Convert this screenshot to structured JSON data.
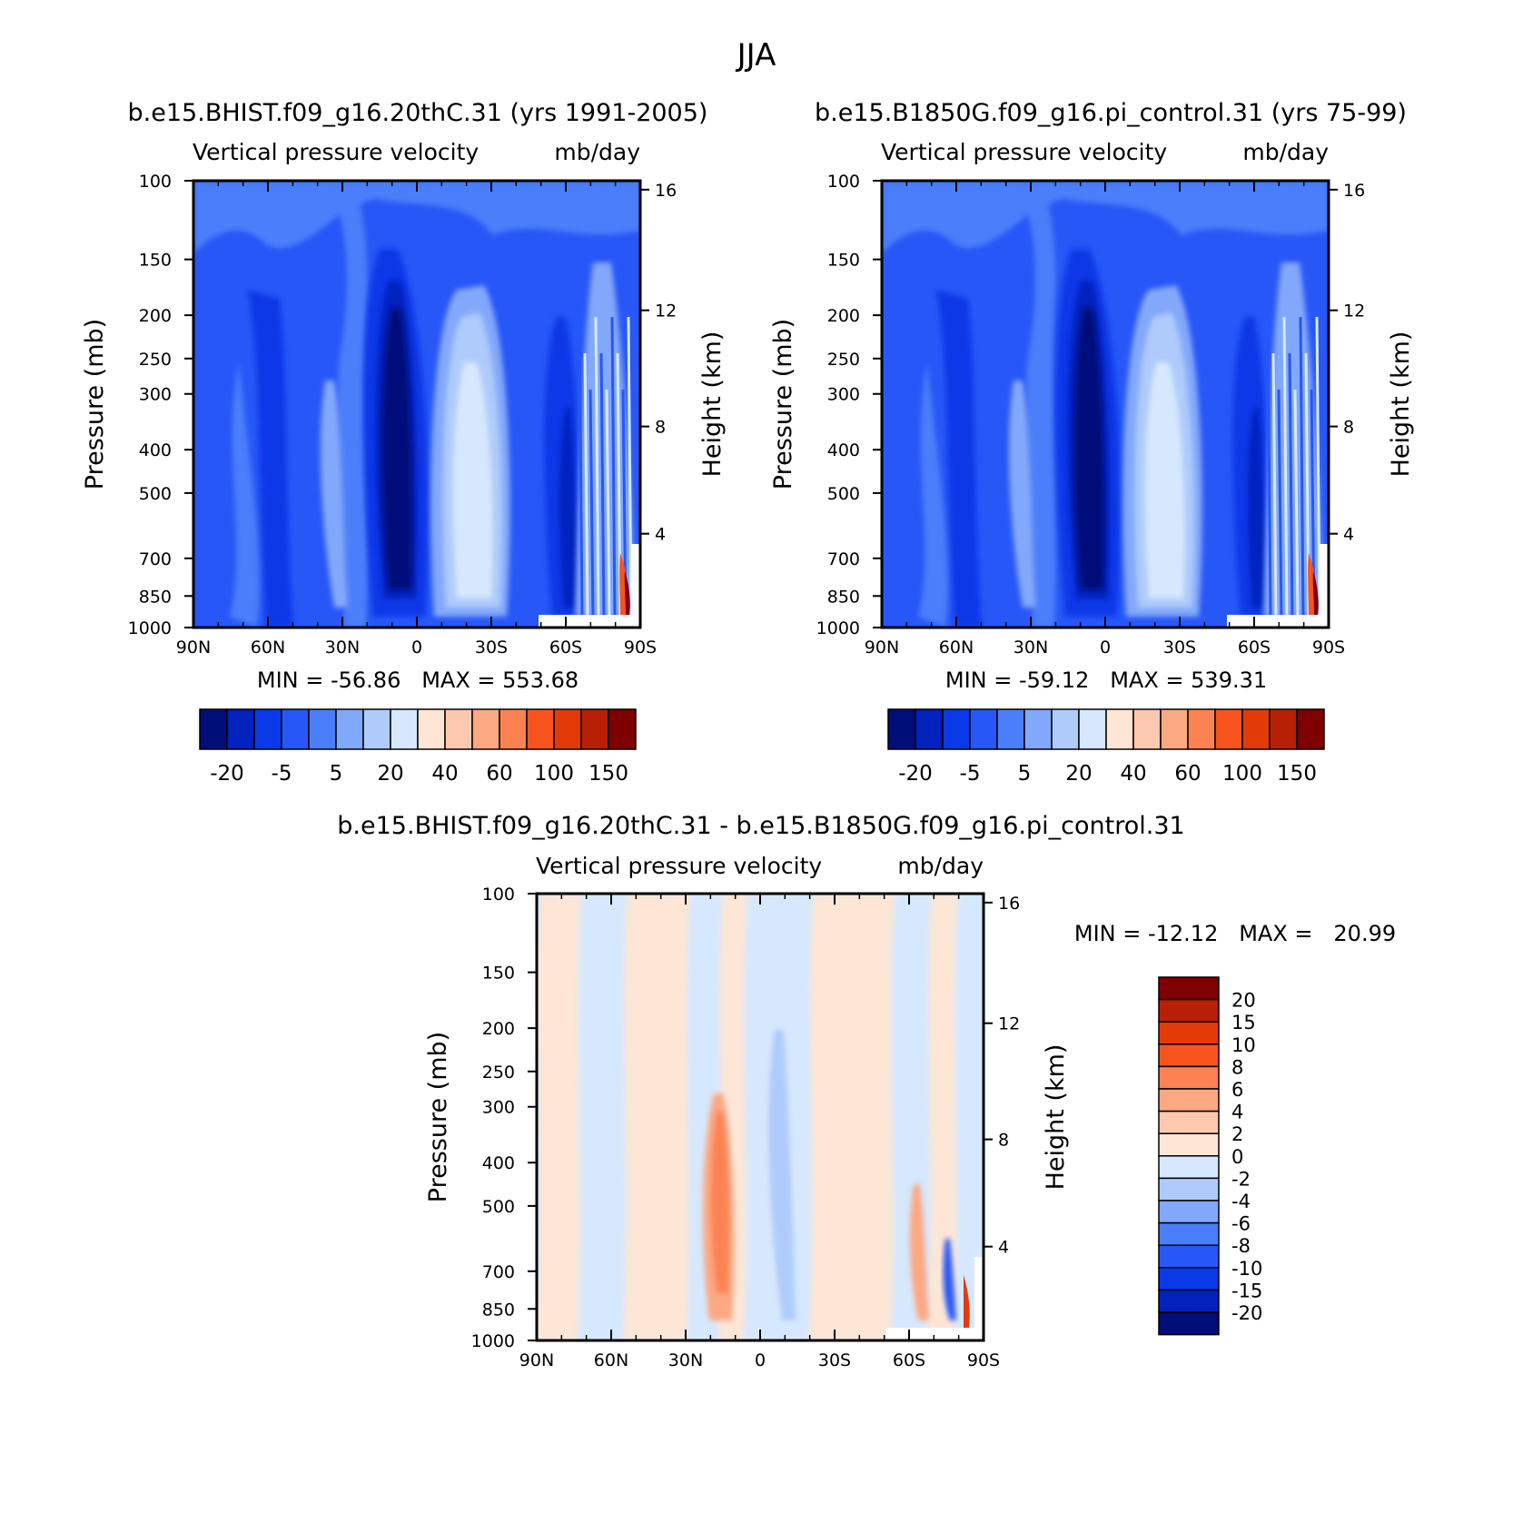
{
  "figure": {
    "title": "JJA",
    "colors": {
      "positive_scale": [
        "#fde6d6",
        "#fcc9b0",
        "#fca882",
        "#fc8252",
        "#f9541e",
        "#e23b08",
        "#b82005",
        "#7f0000"
      ],
      "negative_scale": [
        "#d6e8fd",
        "#aecbfc",
        "#82a8fb",
        "#4b7efb",
        "#2757f7",
        "#0a39e8",
        "#0122bd",
        "#000e7a"
      ]
    }
  },
  "chart_data": [
    {
      "type": "heatmap",
      "title": "b.e15.BHIST.f09_g16.20thC.31 (yrs 1991-2005)",
      "subtitle": "Vertical pressure velocity",
      "units": "mb/day",
      "xlabel": "",
      "ylabel": "Pressure (mb)",
      "ylabel_right": "Height (km)",
      "x_ticks": [
        "90N",
        "60N",
        "30N",
        "0",
        "30S",
        "60S",
        "90S"
      ],
      "y_ticks": [
        "100",
        "150",
        "200",
        "250",
        "300",
        "400",
        "500",
        "700",
        "850",
        "1000"
      ],
      "y_right_ticks": [
        "16",
        "12",
        "8",
        "4"
      ],
      "y_scale": "log",
      "stats": "MIN = -56.86   MAX = 553.68",
      "colorbar_labels": [
        "-20",
        "-5",
        "5",
        "20",
        "40",
        "60",
        "100",
        "150"
      ],
      "colorbar_orientation": "horizontal",
      "x": [
        90,
        60,
        40,
        30,
        20,
        10,
        0,
        -10,
        -20,
        -30,
        -40,
        -50,
        -60,
        -70,
        -80,
        -90
      ],
      "fields": [
        {
          "name": "background",
          "color": "#2757f7"
        },
        {
          "name": "upper-band",
          "color": "#4b7efb"
        },
        {
          "name": "equatorial-core",
          "color": "#000e7a"
        },
        {
          "name": "equatorial-band",
          "color": "#0a39e8"
        },
        {
          "name": "subtropical-high",
          "color": "#d6e8fd"
        },
        {
          "name": "subtropical-ring-1",
          "color": "#aecbfc"
        },
        {
          "name": "subtropical-ring-2",
          "color": "#82a8fb"
        }
      ]
    },
    {
      "type": "heatmap",
      "title": "b.e15.B1850G.f09_g16.pi_control.31 (yrs 75-99)",
      "subtitle": "Vertical pressure velocity",
      "units": "mb/day",
      "xlabel": "",
      "ylabel": "Pressure (mb)",
      "ylabel_right": "Height (km)",
      "x_ticks": [
        "90N",
        "60N",
        "30N",
        "0",
        "30S",
        "60S",
        "90S"
      ],
      "y_ticks": [
        "100",
        "150",
        "200",
        "250",
        "300",
        "400",
        "500",
        "700",
        "850",
        "1000"
      ],
      "y_right_ticks": [
        "16",
        "12",
        "8",
        "4"
      ],
      "y_scale": "log",
      "stats": "MIN = -59.12   MAX = 539.31",
      "colorbar_labels": [
        "-20",
        "-5",
        "5",
        "20",
        "40",
        "60",
        "100",
        "150"
      ],
      "colorbar_orientation": "horizontal"
    },
    {
      "type": "heatmap",
      "title": "b.e15.BHIST.f09_g16.20thC.31 - b.e15.B1850G.f09_g16.pi_control.31",
      "subtitle": "Vertical pressure velocity",
      "units": "mb/day",
      "xlabel": "",
      "ylabel": "Pressure (mb)",
      "ylabel_right": "Height (km)",
      "x_ticks": [
        "90N",
        "60N",
        "30N",
        "0",
        "30S",
        "60S",
        "90S"
      ],
      "y_ticks": [
        "100",
        "150",
        "200",
        "250",
        "300",
        "400",
        "500",
        "700",
        "850",
        "1000"
      ],
      "y_right_ticks": [
        "16",
        "12",
        "8",
        "4"
      ],
      "y_scale": "log",
      "stats": "MIN = -12.12   MAX =   20.99",
      "colorbar_labels": [
        "20",
        "15",
        "10",
        "8",
        "6",
        "4",
        "2",
        "0",
        "-2",
        "-4",
        "-6",
        "-8",
        "-10",
        "-15",
        "-20"
      ],
      "colorbar_orientation": "vertical"
    }
  ]
}
